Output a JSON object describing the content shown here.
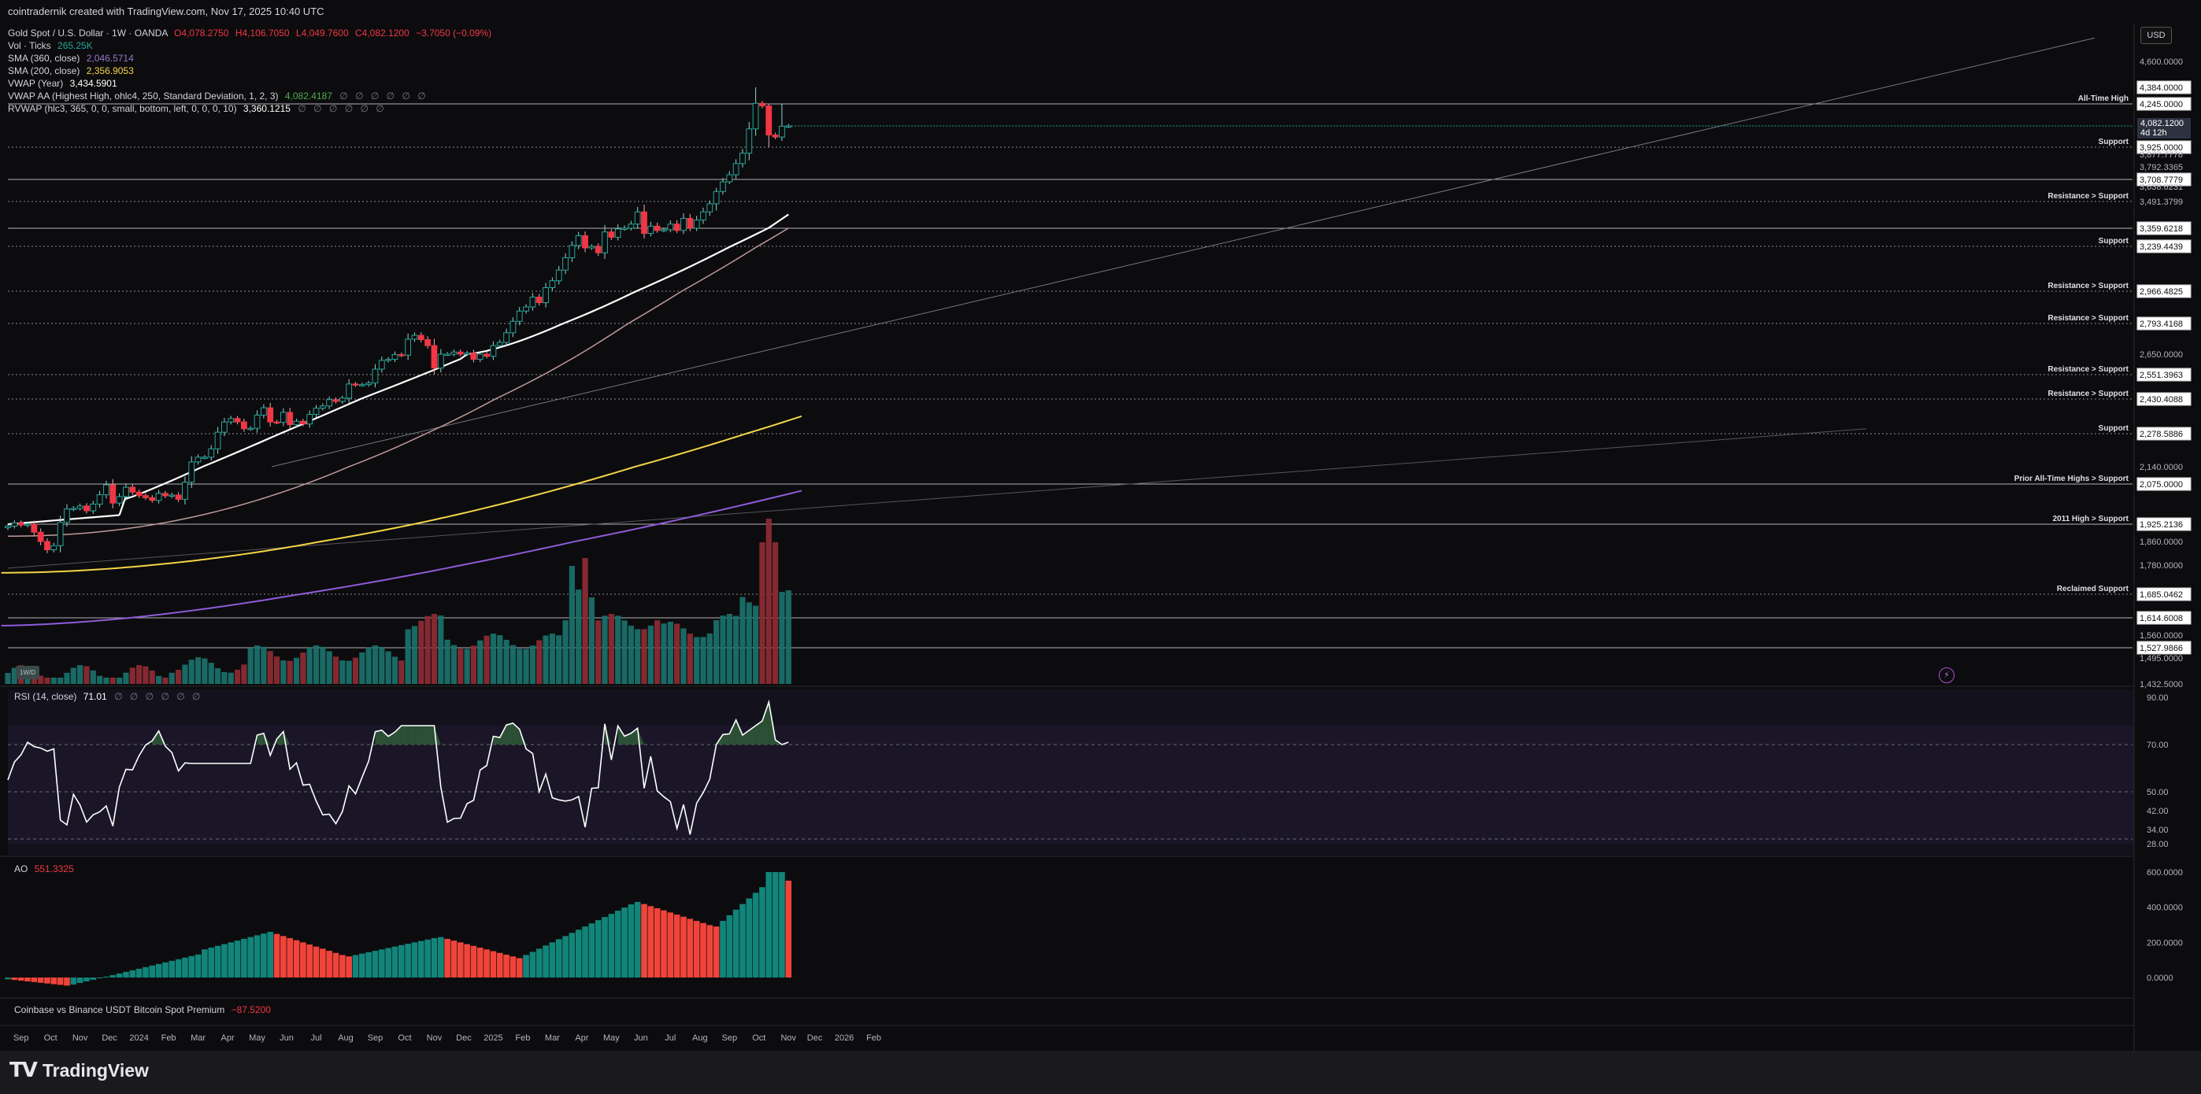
{
  "header": {
    "created_by": "cointradernik created with TradingView.com, Nov 17, 2025 10:40 UTC"
  },
  "legend": {
    "symbol": "Gold Spot / U.S. Dollar · 1W · OANDA",
    "open": "O4,078.2750",
    "high": "H4,106.7050",
    "low": "L4,049.7600",
    "close": "C4,082.1200",
    "change": "−3.7050 (−0.09%)",
    "vol_label": "Vol · Ticks",
    "vol_value": "265.25K",
    "sma360_label": "SMA (360, close)",
    "sma360_value": "2,046.5714",
    "sma200_label": "SMA (200, close)",
    "sma200_value": "2,356.9053",
    "vwap_label": "VWAP (Year)",
    "vwap_value": "3,434.5901",
    "vwapaa_label": "VWAP AA (Highest High, ohlc4, 250, Standard Deviation, 1, 2, 3)",
    "vwapaa_value": "4,082.4187",
    "rvwap_label": "RVWAP (hlc3, 365, 0, 0, small, bottom, left, 0, 0, 0, 10)",
    "rvwap_value": "3,360.1215",
    "rsi_label": "RSI (14, close)",
    "rsi_value": "71.01",
    "ao_label": "AO",
    "ao_value": "551.3325",
    "premium_label": "Coinbase vs Binance USDT Bitcoin Spot Premium",
    "premium_value": "−87.5200",
    "eyes": "∅ ∅ ∅ ∅ ∅ ∅"
  },
  "price_axis": {
    "currency_button": "USD",
    "labels": [
      {
        "price": 4600,
        "text": "4,600.0000",
        "type": "tick"
      },
      {
        "price": 4384,
        "text": "4,384.0000",
        "type": "box"
      },
      {
        "price": 4245,
        "text": "4,245.0000",
        "type": "box"
      },
      {
        "price": 3925,
        "text": "3,925.0000",
        "type": "box"
      },
      {
        "price": 3877.7778,
        "text": "3,877.7778",
        "type": "tick"
      },
      {
        "price": 3792.3365,
        "text": "3,792.3365",
        "type": "tick"
      },
      {
        "price": 3708.7779,
        "text": "3,708.7779",
        "type": "box"
      },
      {
        "price": 3638.6231,
        "text": "3,638.6231",
        "type": "tick"
      },
      {
        "price": 3491.3799,
        "text": "3,491.3799",
        "type": "tick"
      },
      {
        "price": 3359.6218,
        "text": "3,359.6218",
        "type": "box"
      },
      {
        "price": 3239.4439,
        "text": "3,239.4439",
        "type": "box"
      },
      {
        "price": 2966.4825,
        "text": "2,966.4825",
        "type": "box"
      },
      {
        "price": 2793.4168,
        "text": "2,793.4168",
        "type": "box"
      },
      {
        "price": 2650,
        "text": "2,650.0000",
        "type": "tick"
      },
      {
        "price": 2551.3963,
        "text": "2,551.3963",
        "type": "box"
      },
      {
        "price": 2430.4088,
        "text": "2,430.4088",
        "type": "box"
      },
      {
        "price": 2278.5886,
        "text": "2,278.5886",
        "type": "box"
      },
      {
        "price": 2140,
        "text": "2,140.0000",
        "type": "tick"
      },
      {
        "price": 2075,
        "text": "2,075.0000",
        "type": "box"
      },
      {
        "price": 1925.2136,
        "text": "1,925.2136",
        "type": "box"
      },
      {
        "price": 1860,
        "text": "1,860.0000",
        "type": "tick"
      },
      {
        "price": 1780,
        "text": "1,780.0000",
        "type": "tick"
      },
      {
        "price": 1685.0462,
        "text": "1,685.0462",
        "type": "box"
      },
      {
        "price": 1614.6008,
        "text": "1,614.6008",
        "type": "box"
      },
      {
        "price": 1560,
        "text": "1,560.0000",
        "type": "tick"
      },
      {
        "price": 1527.9866,
        "text": "1,527.9866",
        "type": "box"
      },
      {
        "price": 1495,
        "text": "1,495.0000",
        "type": "tick"
      },
      {
        "price": 1432.5,
        "text": "1,432.5000",
        "type": "tick"
      }
    ],
    "current_price": "4,082.1200",
    "countdown": "4d 12h"
  },
  "levels": [
    {
      "price": 4245,
      "label": "All-Time High",
      "style": "solid"
    },
    {
      "price": 3925,
      "label": "Support",
      "style": "dotted"
    },
    {
      "price": 3708.7779,
      "label": "",
      "style": "solid"
    },
    {
      "price": 3491.3799,
      "label": "Resistance > Support",
      "style": "dotted"
    },
    {
      "price": 3359.6218,
      "label": "",
      "style": "solid"
    },
    {
      "price": 3239.4439,
      "label": "Support",
      "style": "dotted"
    },
    {
      "price": 2966.4825,
      "label": "Resistance > Support",
      "style": "dotted"
    },
    {
      "price": 2793.4168,
      "label": "Resistance > Support",
      "style": "dotted"
    },
    {
      "price": 2551.3963,
      "label": "Resistance > Support",
      "style": "dotted"
    },
    {
      "price": 2430.4088,
      "label": "Resistance > Support",
      "style": "dotted"
    },
    {
      "price": 2278.5886,
      "label": "Support",
      "style": "dotted"
    },
    {
      "price": 2075,
      "label": "Prior All-Time Highs > Support",
      "style": "solid"
    },
    {
      "price": 1925.2136,
      "label": "2011 High > Support",
      "style": "solid"
    },
    {
      "price": 1685.0462,
      "label": "Reclaimed Support",
      "style": "dotted"
    },
    {
      "price": 1614.6008,
      "label": "",
      "style": "solid"
    },
    {
      "price": 1527.9866,
      "label": "",
      "style": "solid"
    }
  ],
  "time_axis": {
    "labels": [
      {
        "week": 2,
        "text": "Sep"
      },
      {
        "week": 6.5,
        "text": "Oct"
      },
      {
        "week": 11,
        "text": "Nov"
      },
      {
        "week": 15.5,
        "text": "Dec"
      },
      {
        "week": 20,
        "text": "2024"
      },
      {
        "week": 24.5,
        "text": "Feb"
      },
      {
        "week": 29,
        "text": "Mar"
      },
      {
        "week": 33.5,
        "text": "Apr"
      },
      {
        "week": 38,
        "text": "May"
      },
      {
        "week": 42.5,
        "text": "Jun"
      },
      {
        "week": 47,
        "text": "Jul"
      },
      {
        "week": 51.5,
        "text": "Aug"
      },
      {
        "week": 56,
        "text": "Sep"
      },
      {
        "week": 60.5,
        "text": "Oct"
      },
      {
        "week": 65,
        "text": "Nov"
      },
      {
        "week": 69.5,
        "text": "Dec"
      },
      {
        "week": 74,
        "text": "2025"
      },
      {
        "week": 78.5,
        "text": "Feb"
      },
      {
        "week": 83,
        "text": "Mar"
      },
      {
        "week": 87.5,
        "text": "Apr"
      },
      {
        "week": 92,
        "text": "May"
      },
      {
        "week": 96.5,
        "text": "Jun"
      },
      {
        "week": 101,
        "text": "Jul"
      },
      {
        "week": 105.5,
        "text": "Aug"
      },
      {
        "week": 110,
        "text": "Sep"
      },
      {
        "week": 114.5,
        "text": "Oct"
      },
      {
        "week": 119,
        "text": "Nov"
      },
      {
        "week": 123,
        "text": "Dec"
      },
      {
        "week": 127.5,
        "text": "2026"
      },
      {
        "week": 132,
        "text": "Feb"
      }
    ]
  },
  "rsi_axis": [
    {
      "value": 90,
      "text": "90.00"
    },
    {
      "value": 70,
      "text": "70.00"
    },
    {
      "value": 50,
      "text": "50.00"
    },
    {
      "value": 42,
      "text": "42.00"
    },
    {
      "value": 34,
      "text": "34.00"
    },
    {
      "value": 28,
      "text": "28.00"
    }
  ],
  "ao_axis": [
    {
      "value": 600,
      "text": "600.0000"
    },
    {
      "value": 400,
      "text": "400.0000"
    },
    {
      "value": 200,
      "text": "200.0000"
    },
    {
      "value": 0,
      "text": "0.0000"
    }
  ],
  "brand": {
    "name": "TradingView",
    "logo": "TV"
  },
  "watermark_box": "1W/D",
  "bolt_icon": "⚡",
  "colors": {
    "up": "#26a69a",
    "down": "#f23645",
    "sma200": "#f5d547",
    "sma360": "#8e5cd9",
    "vwap": "#ffffff",
    "rvwap": "#c9a0a0"
  },
  "chart_data": {
    "type": "candlestick",
    "timeframe": "1W",
    "note_series": "weekly OHLC, Aug 2023 → Nov 2025",
    "ohlc": []
  }
}
